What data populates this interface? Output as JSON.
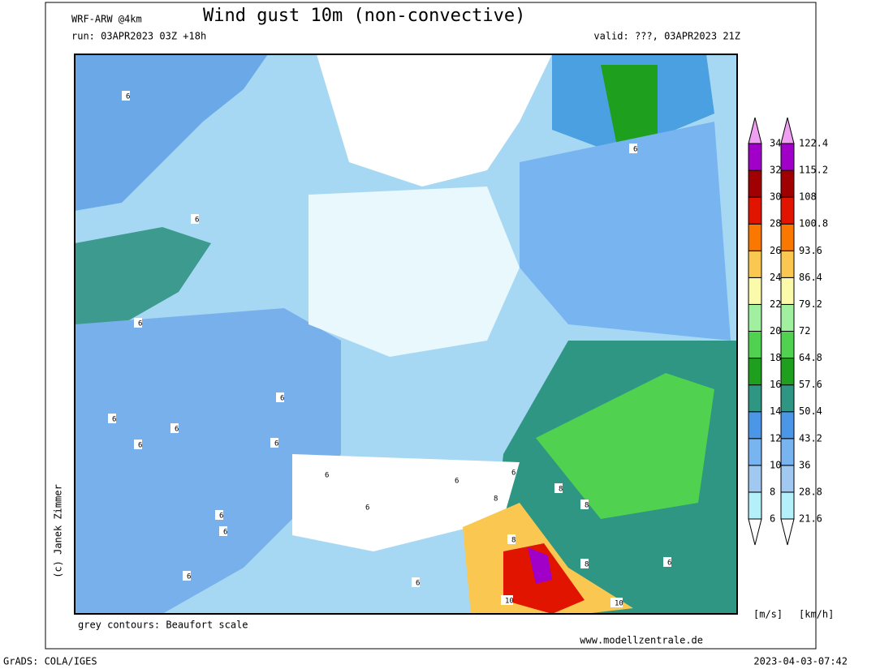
{
  "header": {
    "model": "WRF-ARW @4km",
    "title": "Wind gust 10m (non-convective)",
    "run": "run: 03APR2023 03Z +18h",
    "valid": "valid: ???, 03APR2023 21Z"
  },
  "map": {
    "credit": "(c) Janek Zimmer",
    "contour_note": "grey contours: Beaufort scale",
    "website": "www.modellzentrale.de",
    "contour_labels": [
      6,
      6,
      6,
      6,
      6,
      6,
      6,
      6,
      6,
      6,
      6,
      6,
      6,
      6,
      6,
      8,
      8,
      8,
      8,
      8,
      6,
      6,
      6,
      10,
      10
    ]
  },
  "legend": {
    "ms_labels": [
      6,
      8,
      10,
      12,
      14,
      16,
      18,
      20,
      22,
      24,
      26,
      28,
      30,
      32,
      34
    ],
    "kmh_labels": [
      21.6,
      28.8,
      36,
      43.2,
      50.4,
      57.6,
      64.8,
      72,
      79.2,
      86.4,
      93.6,
      100.8,
      108,
      115.2,
      122.4
    ],
    "colors": [
      "#b4f0fa",
      "#a0c8f0",
      "#78b4f0",
      "#4b96e6",
      "#2e9682",
      "#1ea01e",
      "#50d250",
      "#a0f0a0",
      "#fafaaa",
      "#fac850",
      "#fa7800",
      "#e11400",
      "#a00000",
      "#a000c8"
    ],
    "over_color": "#dc3cfa",
    "top_color": "#f0a0f0",
    "under_color": "#ffffff",
    "unit_ms": "[m/s]",
    "unit_kmh": "[km/h]"
  },
  "footer": {
    "software": "GrADS: COLA/IGES",
    "timestamp": "2023-04-03-07:42"
  }
}
